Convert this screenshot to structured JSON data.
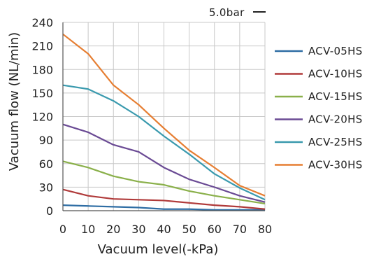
{
  "chart_data": {
    "type": "line",
    "title": "",
    "pressure_label": "5.0bar",
    "xlabel": "Vacuum level(-kPa)",
    "ylabel": "Vacuum flow (NL/min)",
    "x": [
      0,
      10,
      20,
      30,
      40,
      50,
      60,
      70,
      80
    ],
    "xlim": [
      0,
      80
    ],
    "ylim": [
      0,
      240
    ],
    "x_ticks": [
      "0",
      "10",
      "20",
      "30",
      "40",
      "50",
      "60",
      "70",
      "80"
    ],
    "y_ticks": [
      "0",
      "30",
      "60",
      "90",
      "120",
      "150",
      "180",
      "210",
      "240"
    ],
    "grid": true,
    "legend_position": "right",
    "series": [
      {
        "name": "ACV-05HS",
        "color": "#2e6da4",
        "values": [
          7,
          6,
          5,
          4,
          2,
          2,
          1,
          1,
          1
        ]
      },
      {
        "name": "ACV-10HS",
        "color": "#b03a3a",
        "values": [
          27,
          19,
          15,
          14,
          13,
          10,
          7,
          5,
          2
        ]
      },
      {
        "name": "ACV-15HS",
        "color": "#8ab04a",
        "values": [
          63,
          55,
          44,
          37,
          33,
          25,
          19,
          14,
          9
        ]
      },
      {
        "name": "ACV-20HS",
        "color": "#6a4a94",
        "values": [
          110,
          100,
          84,
          75,
          55,
          40,
          30,
          19,
          11
        ]
      },
      {
        "name": "ACV-25HS",
        "color": "#3a9aae",
        "values": [
          160,
          155,
          140,
          120,
          95,
          72,
          47,
          29,
          14
        ]
      },
      {
        "name": "ACV-30HS",
        "color": "#e67e32",
        "values": [
          225,
          200,
          160,
          135,
          105,
          77,
          55,
          32,
          19
        ]
      }
    ]
  }
}
